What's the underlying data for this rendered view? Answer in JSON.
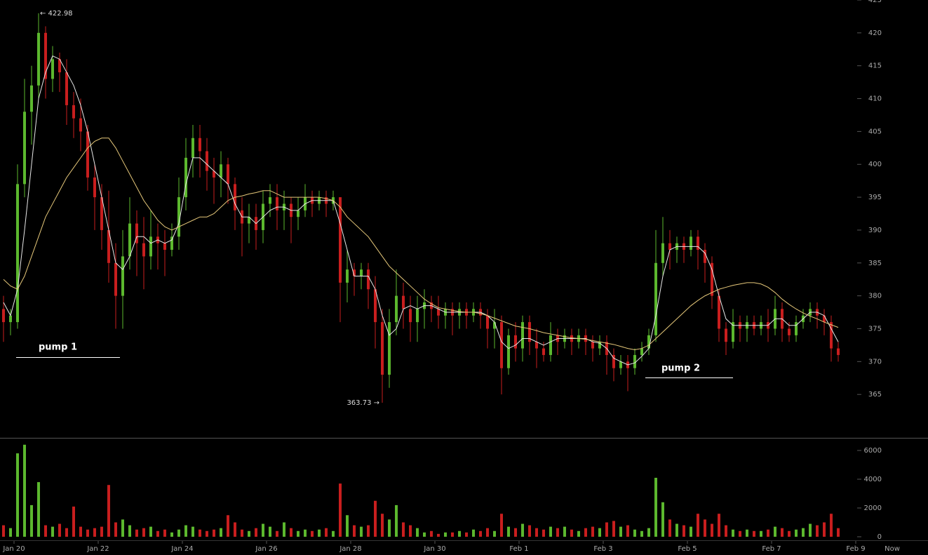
{
  "chart_data": [
    {
      "type": "candlestick",
      "up_color": "#5cb82e",
      "down_color": "#c81e1e",
      "open": [
        378,
        376,
        376,
        397,
        408,
        412,
        420,
        413,
        416,
        414,
        409,
        407,
        405,
        398,
        395,
        390,
        385,
        380,
        386,
        391,
        388,
        386,
        389,
        388,
        387,
        389,
        395,
        401,
        404,
        402,
        399,
        398,
        400,
        397,
        393,
        391,
        392,
        390,
        394,
        395,
        393,
        394,
        392,
        393,
        395,
        394,
        395,
        394,
        395,
        382,
        384,
        383,
        384,
        381,
        376,
        368,
        376,
        380,
        378,
        376,
        378,
        379,
        378,
        377,
        378,
        377,
        378,
        377,
        378,
        377,
        375,
        376,
        369,
        374,
        372,
        376,
        373,
        372,
        371,
        374,
        373,
        374,
        373,
        374,
        373,
        372,
        373,
        371,
        369,
        370,
        369,
        371,
        372,
        374,
        385,
        388,
        387,
        388,
        387,
        389,
        387,
        385,
        380,
        375,
        373,
        376,
        375,
        376,
        375,
        376,
        375,
        378,
        375,
        374,
        376,
        377,
        378,
        377,
        376,
        372
      ],
      "high": [
        380,
        378,
        400,
        413,
        415,
        422.98,
        421,
        418,
        417,
        416,
        411,
        410,
        406,
        400,
        397,
        396,
        388,
        390,
        395,
        393,
        392,
        393,
        391,
        390,
        391,
        398,
        404,
        406,
        406,
        404,
        401,
        402,
        401,
        398,
        395,
        394,
        394,
        396,
        397,
        397,
        396,
        395,
        395,
        397,
        396,
        396,
        396,
        396,
        395,
        387,
        385,
        385,
        385,
        383,
        378,
        378,
        384,
        382,
        380,
        380,
        381,
        380,
        380,
        379,
        379,
        379,
        379,
        379,
        379,
        378,
        378,
        377,
        375,
        376,
        377,
        377,
        375,
        373,
        376,
        375,
        375,
        375,
        375,
        375,
        374,
        374,
        374,
        372,
        371,
        371,
        372,
        373,
        375,
        390,
        392,
        390,
        389,
        389,
        390,
        390,
        388,
        386,
        381,
        376,
        378,
        377,
        377,
        377,
        377,
        378,
        380,
        379,
        376,
        377,
        378,
        379,
        379,
        378,
        377,
        373
      ],
      "low": [
        373,
        374,
        375,
        395,
        403,
        410,
        410,
        411,
        411,
        406,
        404,
        402,
        396,
        390,
        387,
        382,
        375,
        375,
        384,
        383,
        381,
        384,
        384,
        383,
        386,
        387,
        393,
        398,
        398,
        396,
        394,
        395,
        394,
        390,
        386,
        388,
        387,
        388,
        392,
        390,
        390,
        388,
        390,
        392,
        392,
        393,
        392,
        393,
        376,
        379,
        380,
        381,
        378,
        372,
        363.73,
        366,
        374,
        375,
        373,
        373,
        375,
        376,
        375,
        375,
        374,
        375,
        375,
        376,
        375,
        372,
        372,
        365,
        368,
        370,
        370,
        371,
        369,
        370,
        370,
        371,
        372,
        371,
        372,
        371,
        370,
        371,
        368,
        367,
        368,
        365.5,
        368,
        370,
        371,
        373,
        383,
        384,
        385,
        385,
        386,
        384,
        382,
        378,
        373,
        371,
        372,
        373,
        373,
        374,
        374,
        373,
        374,
        373,
        373,
        373,
        375,
        376,
        375,
        374,
        370,
        370
      ],
      "close": [
        376,
        377,
        397,
        408,
        412,
        420,
        413,
        416,
        414,
        409,
        407,
        405,
        398,
        395,
        390,
        385,
        380,
        386,
        391,
        388,
        386,
        389,
        388,
        387,
        389,
        395,
        401,
        404,
        402,
        399,
        398,
        400,
        397,
        393,
        391,
        392,
        390,
        394,
        395,
        393,
        394,
        392,
        393,
        395,
        394,
        395,
        394,
        395,
        382,
        384,
        383,
        384,
        381,
        376,
        368,
        376,
        380,
        378,
        376,
        378,
        379,
        378,
        377,
        378,
        377,
        378,
        377,
        378,
        377,
        375,
        376,
        369,
        374,
        372,
        376,
        373,
        372,
        371,
        374,
        373,
        374,
        373,
        374,
        373,
        372,
        373,
        371,
        369,
        370,
        369,
        371,
        372,
        374,
        385,
        388,
        387,
        388,
        387,
        389,
        387,
        385,
        380,
        375,
        373,
        376,
        375,
        376,
        375,
        376,
        375,
        378,
        375,
        374,
        376,
        377,
        378,
        377,
        376,
        372,
        371
      ],
      "series": [
        {
          "color": "#e8e8e8",
          "values": [
            379,
            377,
            381,
            390,
            400,
            410,
            414,
            416.5,
            416,
            414,
            412,
            409,
            405,
            400,
            395,
            390,
            385,
            384,
            386,
            389,
            389,
            388,
            388.5,
            388,
            388.5,
            391,
            397,
            401,
            401,
            400,
            399,
            398,
            397,
            394,
            392,
            392,
            391,
            392,
            393,
            393.5,
            393.5,
            393,
            393,
            394,
            394.5,
            394.5,
            394.5,
            394.5,
            391,
            387,
            383,
            383,
            383,
            381,
            377,
            374,
            375,
            378,
            378.5,
            378,
            378.5,
            378.5,
            378,
            377.5,
            377.5,
            377.5,
            377.5,
            377.5,
            377.5,
            377,
            376,
            373,
            372,
            372.5,
            373.5,
            373.5,
            373,
            372.5,
            373,
            373.5,
            373.5,
            373.5,
            373.5,
            373.5,
            373,
            372.8,
            372,
            370.5,
            370,
            369.5,
            369.8,
            370.8,
            372,
            377,
            383,
            387,
            387.5,
            387.5,
            387.5,
            387.5,
            386.5,
            384,
            380,
            376.5,
            375.5,
            375.5,
            375.5,
            375.5,
            375.5,
            375.5,
            376.5,
            376.5,
            375.5,
            375.5,
            376.5,
            377.5,
            377.5,
            377,
            375,
            373
          ]
        },
        {
          "color": "#e6c87a",
          "values": [
            382.5,
            381.5,
            381,
            383,
            386,
            389,
            392,
            394,
            396,
            398,
            399.5,
            401,
            402.5,
            403.5,
            404,
            404,
            402.5,
            400.5,
            398.5,
            396.5,
            394.5,
            393,
            391.5,
            390.5,
            390,
            390.5,
            391,
            391.5,
            392,
            392,
            392.5,
            393.5,
            394.5,
            395,
            395.2,
            395.5,
            395.7,
            396,
            396,
            395.5,
            395,
            395,
            395,
            395,
            395,
            395,
            394.8,
            394.5,
            393.5,
            392,
            391,
            390,
            389,
            387.5,
            386,
            384.5,
            383.5,
            382.5,
            381.5,
            380.5,
            379.5,
            378.8,
            378.2,
            378,
            377.8,
            377.6,
            377.5,
            377.5,
            377.3,
            377,
            376.6,
            376.2,
            375.8,
            375.4,
            375.2,
            375,
            374.7,
            374.4,
            374.2,
            374,
            373.8,
            373.6,
            373.5,
            373.4,
            373.2,
            373,
            372.8,
            372.6,
            372.3,
            372,
            371.8,
            372,
            372.5,
            373.5,
            374.5,
            375.5,
            376.5,
            377.5,
            378.5,
            379.3,
            380,
            380.5,
            381,
            381.3,
            381.6,
            381.8,
            382,
            382,
            381.8,
            381.3,
            380.5,
            379.5,
            378.7,
            378,
            377.4,
            376.9,
            376.5,
            376,
            375.6,
            375.2
          ]
        }
      ],
      "ylim": [
        358.4,
        425
      ],
      "yticks": [
        365,
        370,
        375,
        380,
        385,
        390,
        395,
        400,
        405,
        410,
        415,
        420,
        425
      ],
      "xlim": [
        0,
        122.5
      ],
      "annotations": [
        "← 422.98",
        "363.73 →",
        "pump 1",
        "pump 2"
      ]
    },
    {
      "type": "bar",
      "values": [
        800,
        600,
        5800,
        6400,
        2200,
        3800,
        800,
        700,
        900,
        600,
        2100,
        700,
        500,
        600,
        700,
        3600,
        1000,
        1200,
        800,
        500,
        600,
        700,
        400,
        500,
        300,
        500,
        800,
        700,
        500,
        400,
        500,
        600,
        1500,
        1000,
        500,
        400,
        600,
        900,
        700,
        400,
        1000,
        600,
        400,
        500,
        400,
        500,
        600,
        400,
        3700,
        1500,
        800,
        700,
        800,
        2500,
        1600,
        1200,
        2200,
        1000,
        800,
        600,
        300,
        400,
        200,
        300,
        300,
        400,
        300,
        500,
        400,
        600,
        400,
        1600,
        700,
        600,
        900,
        800,
        600,
        500,
        700,
        600,
        700,
        500,
        400,
        600,
        700,
        600,
        1000,
        1100,
        700,
        800,
        500,
        400,
        600,
        4100,
        2400,
        1200,
        900,
        800,
        700,
        1600,
        1200,
        900,
        1600,
        800,
        500,
        400,
        500,
        400,
        400,
        500,
        700,
        600,
        400,
        500,
        600,
        900,
        800,
        1000,
        1600,
        600
      ],
      "ylim": [
        0,
        6830
      ],
      "yticks": [
        0,
        2000,
        4000,
        6000
      ],
      "xlim": [
        0,
        122.5
      ],
      "xticks": [
        {
          "value": 2,
          "label": "Jan 20"
        },
        {
          "value": 14,
          "label": "Jan 22"
        },
        {
          "value": 26,
          "label": "Jan 24"
        },
        {
          "value": 38,
          "label": "Jan 26"
        },
        {
          "value": 50,
          "label": "Jan 28"
        },
        {
          "value": 62,
          "label": "Jan 30"
        },
        {
          "value": 74,
          "label": "Feb 1"
        },
        {
          "value": 86,
          "label": "Feb 3"
        },
        {
          "value": 98,
          "label": "Feb 5"
        },
        {
          "value": 110,
          "label": "Feb 7"
        },
        {
          "value": 122,
          "label": "Feb 9"
        }
      ],
      "now_label": "Now"
    }
  ]
}
